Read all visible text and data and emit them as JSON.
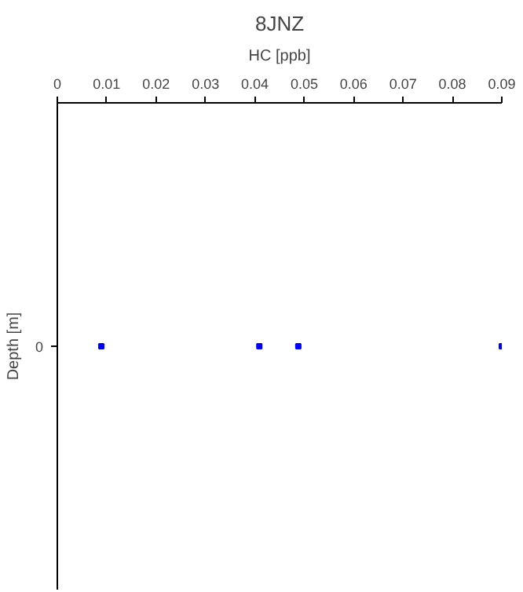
{
  "chart_data": {
    "type": "scatter",
    "orientation": "horizontal",
    "title": "8JNZ",
    "xlabel": "HC [ppb]",
    "ylabel": "Depth [m]",
    "categories": [
      "0"
    ],
    "series": [
      {
        "color": "#0000ff",
        "values": [
          0.0089
        ]
      },
      {
        "color": "#0000ff",
        "values": [
          0.0409
        ]
      },
      {
        "color": "#0000ff",
        "values": [
          0.0488
        ]
      },
      {
        "color": "#0000ff",
        "values": [
          0.09
        ]
      }
    ],
    "xlim": [
      0,
      0.09
    ],
    "xticks": [
      0,
      0.01,
      0.02,
      0.03,
      0.04,
      0.05,
      0.06,
      0.07,
      0.08,
      0.09
    ],
    "marker": "square"
  }
}
